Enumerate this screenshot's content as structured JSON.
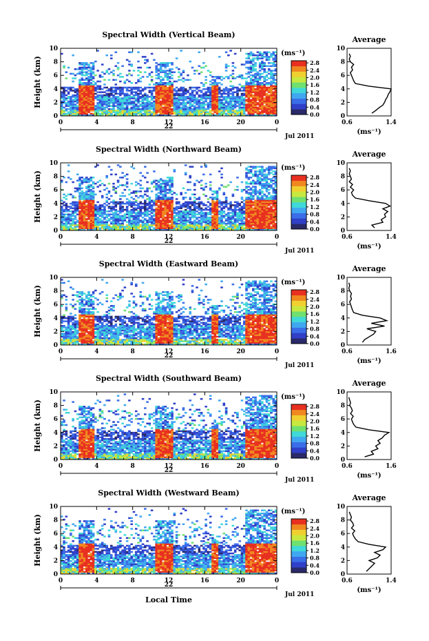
{
  "figure": {
    "xlabel": "Local Time",
    "date_label": "Jul 2011",
    "day_label": "22",
    "colorbar_units": "(ms⁻¹)",
    "colorbar_ticks": [
      "0.0",
      "0.4",
      "0.8",
      "1.2",
      "1.6",
      "2.0",
      "2.4",
      "2.8"
    ],
    "colors": [
      "#2a2a6a",
      "#3040c8",
      "#3a6ee8",
      "#40a8f0",
      "#40d8d8",
      "#70e070",
      "#c8e840",
      "#f0d030",
      "#f08820",
      "#e83020"
    ],
    "no_data_color": "#ffffff"
  },
  "chart_data": [
    {
      "type": "heatmap",
      "title": "Spectral Width (Vertical Beam)",
      "xlabel": "",
      "ylabel": "Height (km)",
      "xlim": [
        0,
        24
      ],
      "ylim": [
        0,
        10
      ],
      "x_ticks": [
        "0",
        "4",
        "8",
        "12",
        "16",
        "20",
        "0"
      ],
      "y_ticks": [
        "0",
        "2",
        "4",
        "6",
        "8",
        "10"
      ],
      "colorbar_range": [
        0.0,
        2.8
      ],
      "echo_top_km": 9.8,
      "active_periods_h": [
        [
          2.0,
          3.8
        ],
        [
          10.6,
          12.4
        ],
        [
          16.8,
          17.4
        ],
        [
          20.6,
          24.0
        ]
      ],
      "profile": {
        "title": "Average",
        "xlabel": "(ms⁻¹)",
        "x_ticks": [
          "0.6",
          "1.4"
        ],
        "xlim": [
          0.6,
          1.4
        ],
        "heights": [
          0.4,
          0.8,
          1.2,
          1.6,
          2.0,
          2.4,
          2.8,
          3.2,
          3.6,
          4.0,
          4.4,
          4.8,
          5.2,
          5.6,
          6.0,
          6.4,
          6.8,
          7.2,
          7.6,
          8.0,
          8.4,
          8.8,
          9.2
        ],
        "values": [
          1.05,
          1.12,
          1.18,
          1.25,
          1.28,
          1.3,
          1.33,
          1.35,
          1.38,
          1.42,
          1.0,
          0.75,
          0.72,
          0.7,
          0.68,
          0.66,
          0.7,
          0.68,
          0.72,
          0.66,
          0.64,
          0.66,
          0.64
        ]
      }
    },
    {
      "type": "heatmap",
      "title": "Spectral Width (Northward Beam)",
      "xlabel": "",
      "ylabel": "Height (km)",
      "xlim": [
        0,
        24
      ],
      "ylim": [
        0,
        10
      ],
      "x_ticks": [
        "0",
        "4",
        "8",
        "12",
        "16",
        "20",
        "0"
      ],
      "y_ticks": [
        "0",
        "2",
        "4",
        "6",
        "8",
        "10"
      ],
      "colorbar_range": [
        0.0,
        2.8
      ],
      "echo_top_km": 9.8,
      "active_periods_h": [
        [
          2.0,
          3.8
        ],
        [
          10.6,
          12.4
        ],
        [
          16.8,
          17.4
        ],
        [
          20.6,
          24.0
        ]
      ],
      "profile": {
        "title": "Average",
        "xlabel": "(ms⁻¹)",
        "x_ticks": [
          "0.6",
          "1.4"
        ],
        "xlim": [
          0.6,
          1.4
        ],
        "heights": [
          0.4,
          0.8,
          1.2,
          1.6,
          2.0,
          2.4,
          2.8,
          3.2,
          3.6,
          4.0,
          4.4,
          4.8,
          5.2,
          5.6,
          6.0,
          6.4,
          6.8,
          7.2,
          7.6,
          8.0,
          8.4,
          8.8,
          9.2
        ],
        "values": [
          1.1,
          1.05,
          1.25,
          1.22,
          1.3,
          1.28,
          1.34,
          1.25,
          1.38,
          1.3,
          1.0,
          0.75,
          0.7,
          0.68,
          0.72,
          0.66,
          0.7,
          0.64,
          0.68,
          0.66,
          0.64,
          0.66,
          0.64
        ]
      }
    },
    {
      "type": "heatmap",
      "title": "Spectral Width (Eastward Beam)",
      "xlabel": "",
      "ylabel": "Height (km)",
      "xlim": [
        0,
        24
      ],
      "ylim": [
        0,
        10
      ],
      "x_ticks": [
        "0",
        "4",
        "8",
        "12",
        "16",
        "20",
        "0"
      ],
      "y_ticks": [
        "0",
        "2",
        "4",
        "6",
        "8",
        "10"
      ],
      "colorbar_range": [
        0.0,
        2.8
      ],
      "echo_top_km": 9.8,
      "active_periods_h": [
        [
          2.0,
          3.8
        ],
        [
          10.6,
          12.4
        ],
        [
          16.8,
          17.4
        ],
        [
          20.6,
          24.0
        ]
      ],
      "profile": {
        "title": "Average",
        "xlabel": "(ms⁻¹)",
        "x_ticks": [
          "0.6",
          "1.6"
        ],
        "xlim": [
          0.6,
          1.6
        ],
        "heights": [
          0.4,
          0.8,
          1.2,
          1.6,
          2.0,
          2.4,
          2.8,
          3.2,
          3.6,
          4.0,
          4.4,
          4.8,
          5.2,
          5.6,
          6.0,
          6.4,
          6.8,
          7.2,
          7.6,
          8.0,
          8.4,
          8.8,
          9.2
        ],
        "values": [
          0.95,
          1.0,
          1.1,
          1.2,
          1.25,
          1.05,
          1.45,
          1.15,
          1.5,
          1.35,
          0.95,
          0.75,
          0.72,
          0.7,
          0.68,
          0.66,
          0.7,
          0.68,
          0.7,
          0.66,
          0.64,
          0.66,
          0.64
        ]
      }
    },
    {
      "type": "heatmap",
      "title": "Spectral Width (Southward Beam)",
      "xlabel": "",
      "ylabel": "Height (km)",
      "xlim": [
        0,
        24
      ],
      "ylim": [
        0,
        10
      ],
      "x_ticks": [
        "0",
        "4",
        "8",
        "12",
        "16",
        "20",
        "0"
      ],
      "y_ticks": [
        "0",
        "2",
        "4",
        "6",
        "8",
        "10"
      ],
      "colorbar_range": [
        0.0,
        2.8
      ],
      "echo_top_km": 9.8,
      "active_periods_h": [
        [
          2.0,
          3.8
        ],
        [
          10.6,
          12.4
        ],
        [
          16.8,
          17.4
        ],
        [
          20.6,
          24.0
        ]
      ],
      "profile": {
        "title": "Average",
        "xlabel": "(ms⁻¹)",
        "x_ticks": [
          "0.6",
          "1.6"
        ],
        "xlim": [
          0.6,
          1.6
        ],
        "heights": [
          0.4,
          0.8,
          1.2,
          1.6,
          2.0,
          2.4,
          2.8,
          3.2,
          3.6,
          4.0,
          4.4,
          4.8,
          5.2,
          5.6,
          6.0,
          6.4,
          6.8,
          7.2,
          7.6,
          8.0,
          8.4,
          8.8,
          9.2
        ],
        "values": [
          1.0,
          1.2,
          1.15,
          1.3,
          1.25,
          1.35,
          1.3,
          1.4,
          1.45,
          1.55,
          1.1,
          0.8,
          0.75,
          0.72,
          0.7,
          0.74,
          0.68,
          0.72,
          0.7,
          0.66,
          0.68,
          0.66,
          0.64
        ]
      }
    },
    {
      "type": "heatmap",
      "title": "Spectral Width (Westward Beam)",
      "xlabel": "Local Time",
      "ylabel": "Height (km)",
      "xlim": [
        0,
        24
      ],
      "ylim": [
        0,
        10
      ],
      "x_ticks": [
        "0",
        "4",
        "8",
        "12",
        "16",
        "20",
        "0"
      ],
      "y_ticks": [
        "0",
        "2",
        "4",
        "6",
        "8",
        "10"
      ],
      "colorbar_range": [
        0.0,
        2.8
      ],
      "echo_top_km": 9.8,
      "active_periods_h": [
        [
          2.0,
          3.8
        ],
        [
          10.6,
          12.4
        ],
        [
          16.8,
          17.4
        ],
        [
          20.6,
          24.0
        ]
      ],
      "profile": {
        "title": "Average",
        "xlabel": "(ms⁻¹)",
        "x_ticks": [
          "0.6",
          "1.4"
        ],
        "xlim": [
          0.6,
          1.4
        ],
        "heights": [
          0.4,
          0.8,
          1.2,
          1.6,
          2.0,
          2.4,
          2.8,
          3.2,
          3.6,
          4.0,
          4.4,
          4.8,
          5.2,
          5.6,
          6.0,
          6.4,
          6.8,
          7.2,
          7.6,
          8.0,
          8.4,
          8.8,
          9.2
        ],
        "values": [
          0.95,
          1.0,
          1.05,
          1.1,
          1.0,
          1.15,
          1.2,
          1.1,
          1.25,
          1.3,
          1.0,
          0.8,
          0.75,
          0.72,
          0.7,
          0.74,
          0.68,
          0.72,
          0.7,
          0.66,
          0.68,
          0.66,
          0.64
        ]
      }
    }
  ]
}
